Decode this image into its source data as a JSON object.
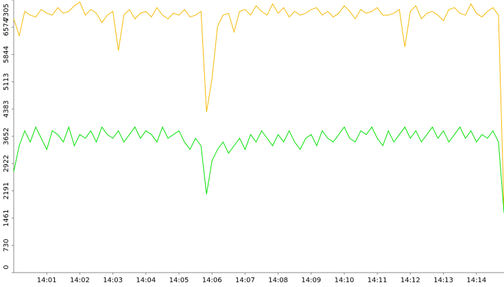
{
  "chart_data": {
    "type": "line",
    "categories": [
      null,
      null,
      null,
      null,
      null,
      null,
      "14:01",
      null,
      null,
      null,
      null,
      null,
      "14:02",
      null,
      null,
      null,
      null,
      null,
      "14:03",
      null,
      null,
      null,
      null,
      null,
      "14:04",
      null,
      null,
      null,
      null,
      null,
      "14:05",
      null,
      null,
      null,
      null,
      null,
      "14:06",
      null,
      null,
      null,
      null,
      null,
      "14:07",
      null,
      null,
      null,
      null,
      null,
      "14:08",
      null,
      null,
      null,
      null,
      null,
      "14:09",
      null,
      null,
      null,
      null,
      null,
      "14:10",
      null,
      null,
      null,
      null,
      null,
      "14:11",
      null,
      null,
      null,
      null,
      null,
      "14:12",
      null,
      null,
      null,
      null,
      null,
      "14:13",
      null,
      null,
      null,
      null,
      null,
      "14:14",
      null,
      null,
      null,
      null,
      null
    ],
    "series": [
      {
        "color": "#f5b800",
        "values": [
          6800,
          6350,
          7000,
          6900,
          6850,
          7050,
          6950,
          6900,
          7100,
          6950,
          7000,
          7150,
          7250,
          6900,
          7050,
          6950,
          6700,
          6900,
          7000,
          5950,
          6900,
          7050,
          6800,
          6950,
          7000,
          6850,
          7100,
          6900,
          6800,
          6950,
          6900,
          7050,
          6850,
          6900,
          7000,
          4300,
          5200,
          6600,
          6900,
          6950,
          6450,
          7000,
          7050,
          6900,
          7150,
          7000,
          6900,
          7200,
          6950,
          7100,
          6850,
          7000,
          6900,
          6950,
          7050,
          7100,
          6900,
          7000,
          6850,
          6950,
          7150,
          7000,
          6800,
          7050,
          6950,
          7000,
          7100,
          6900,
          6900,
          6950,
          7050,
          6050,
          7000,
          7150,
          6800,
          6950,
          7000,
          6900,
          6750,
          7050,
          7100,
          6950,
          6900,
          7200,
          6950,
          6850,
          7000,
          7100,
          6900,
          1700
        ]
      },
      {
        "color": "#00e000",
        "values": [
          2700,
          3400,
          3800,
          3500,
          3900,
          3600,
          3300,
          3800,
          3700,
          3500,
          3900,
          3400,
          3700,
          3600,
          3800,
          3500,
          3900,
          3700,
          3600,
          3800,
          3500,
          3700,
          3900,
          3600,
          3800,
          3700,
          3500,
          3900,
          3600,
          3700,
          3800,
          3500,
          3300,
          3600,
          3400,
          2100,
          3000,
          3300,
          3500,
          3200,
          3400,
          3600,
          3300,
          3700,
          3500,
          3800,
          3600,
          3400,
          3700,
          3500,
          3800,
          3500,
          3300,
          3600,
          3700,
          3400,
          3800,
          3600,
          3500,
          3700,
          3900,
          3600,
          3500,
          3800,
          3700,
          3900,
          3600,
          3400,
          3800,
          3500,
          3700,
          3900,
          3600,
          3800,
          3500,
          3700,
          3900,
          3600,
          3800,
          3500,
          3700,
          3900,
          3600,
          3800,
          3500,
          3700,
          3600,
          3800,
          3500,
          1600
        ]
      }
    ],
    "ylim": [
      0,
      7305
    ],
    "yticks": [
      0,
      730,
      1461,
      2191,
      2922,
      3652,
      4383,
      5113,
      5844,
      6574,
      7305
    ]
  }
}
